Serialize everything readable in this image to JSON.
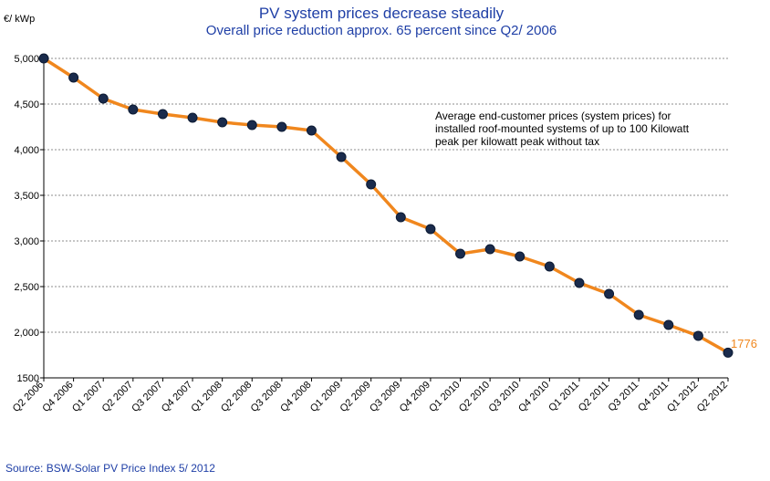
{
  "colors": {
    "title": "#1f3fa6",
    "line": "#f0871e",
    "marker": "#1a2b4c",
    "grid": "#8c8c8c",
    "source": "#1f3fa6",
    "last_label": "#f0871e"
  },
  "chart_data": {
    "type": "line",
    "title": "PV system prices decrease steadily",
    "subtitle": "Overall price reduction approx. 65 percent  since Q2/ 2006",
    "ylabel": "€/ kWp",
    "xlabel": "",
    "ylim": [
      1500,
      5000
    ],
    "yticks": [
      1500,
      2000,
      2500,
      3000,
      3500,
      4000,
      4500,
      5000
    ],
    "ytick_labels": [
      "1500",
      "2,000",
      "2,500",
      "3,000",
      "3,500",
      "4,000",
      "4,500",
      "5,000"
    ],
    "grid": true,
    "legend": false,
    "categories": [
      "Q2 2006",
      "Q4 2006",
      "Q1 2007",
      "Q2 2007",
      "Q3 2007",
      "Q4 2007",
      "Q1 2008",
      "Q2 2008",
      "Q3 2008",
      "Q4 2008",
      "Q1 2009",
      "Q2 2009",
      "Q3 2009",
      "Q4 2009",
      "Q1 2010",
      "Q2 2010",
      "Q3 2010",
      "Q4 2010",
      "Q1 2011",
      "Q2 2011",
      "Q3 2011",
      "Q4 2011",
      "Q1 2012",
      "Q2 2012"
    ],
    "series": [
      {
        "values": [
          5000,
          4790,
          4560,
          4440,
          4390,
          4350,
          4300,
          4270,
          4250,
          4210,
          3920,
          3620,
          3260,
          3130,
          2860,
          2910,
          2830,
          2720,
          2540,
          2420,
          2190,
          2080,
          1960,
          1776
        ]
      }
    ],
    "last_point_label": "1776",
    "annotation_lines": [
      "Average end-customer prices (system prices) for",
      "installed roof-mounted systems of up to 100 Kilowatt",
      "peak per kilowatt peak without tax"
    ],
    "source": "Source: BSW-Solar  PV Price Index 5/ 2012"
  }
}
